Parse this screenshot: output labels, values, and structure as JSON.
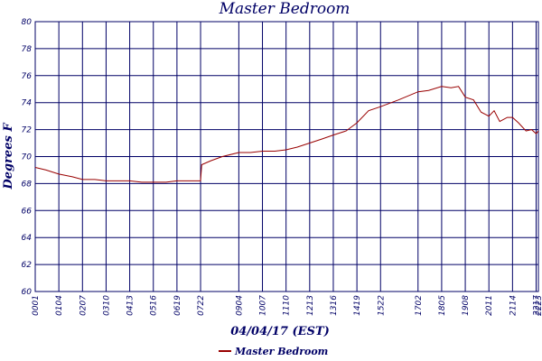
{
  "chart_data": {
    "type": "line",
    "title": "Master Bedroom",
    "xlabel": "04/04/17 (EST)",
    "ylabel": "Degrees F",
    "ylim": [
      60,
      80
    ],
    "yticks": [
      60,
      62,
      64,
      66,
      68,
      70,
      72,
      74,
      76,
      78,
      80
    ],
    "xticks": [
      "00:01",
      "01:04",
      "02:07",
      "03:10",
      "04:13",
      "05:16",
      "06:19",
      "07:22",
      "09:04",
      "10:07",
      "11:10",
      "12:13",
      "13:16",
      "14:19",
      "15:22",
      "17:02",
      "18:05",
      "19:08",
      "20:11",
      "21:14",
      "22:17",
      "22:23"
    ],
    "grid": true,
    "legend_position": "bottom-center",
    "colors": {
      "series": "#990000",
      "grid": "#000066",
      "text": "#000066"
    },
    "series": [
      {
        "name": "Master Bedroom",
        "x": [
          "00:01",
          "00:30",
          "01:04",
          "01:40",
          "02:07",
          "02:40",
          "03:10",
          "03:40",
          "04:13",
          "04:45",
          "05:16",
          "05:50",
          "06:19",
          "06:50",
          "07:22",
          "07:25",
          "07:50",
          "08:20",
          "09:04",
          "09:35",
          "10:07",
          "10:40",
          "11:10",
          "11:40",
          "12:13",
          "12:45",
          "13:16",
          "13:50",
          "14:19",
          "14:50",
          "15:22",
          "16:10",
          "17:02",
          "17:30",
          "18:05",
          "18:30",
          "18:50",
          "19:08",
          "19:30",
          "19:50",
          "20:11",
          "20:25",
          "20:40",
          "21:00",
          "21:14",
          "21:30",
          "21:50",
          "22:05",
          "22:17",
          "22:23"
        ],
        "values": [
          69.2,
          69.0,
          68.7,
          68.5,
          68.3,
          68.3,
          68.2,
          68.2,
          68.2,
          68.1,
          68.1,
          68.1,
          68.2,
          68.2,
          68.2,
          69.4,
          69.7,
          70.0,
          70.3,
          70.3,
          70.4,
          70.4,
          70.5,
          70.7,
          71.0,
          71.3,
          71.6,
          71.9,
          72.5,
          73.4,
          73.7,
          74.2,
          74.8,
          74.9,
          75.2,
          75.1,
          75.2,
          74.4,
          74.2,
          73.3,
          73.0,
          73.4,
          72.6,
          72.9,
          72.9,
          72.5,
          71.9,
          72.0,
          71.7,
          71.9
        ]
      }
    ]
  }
}
